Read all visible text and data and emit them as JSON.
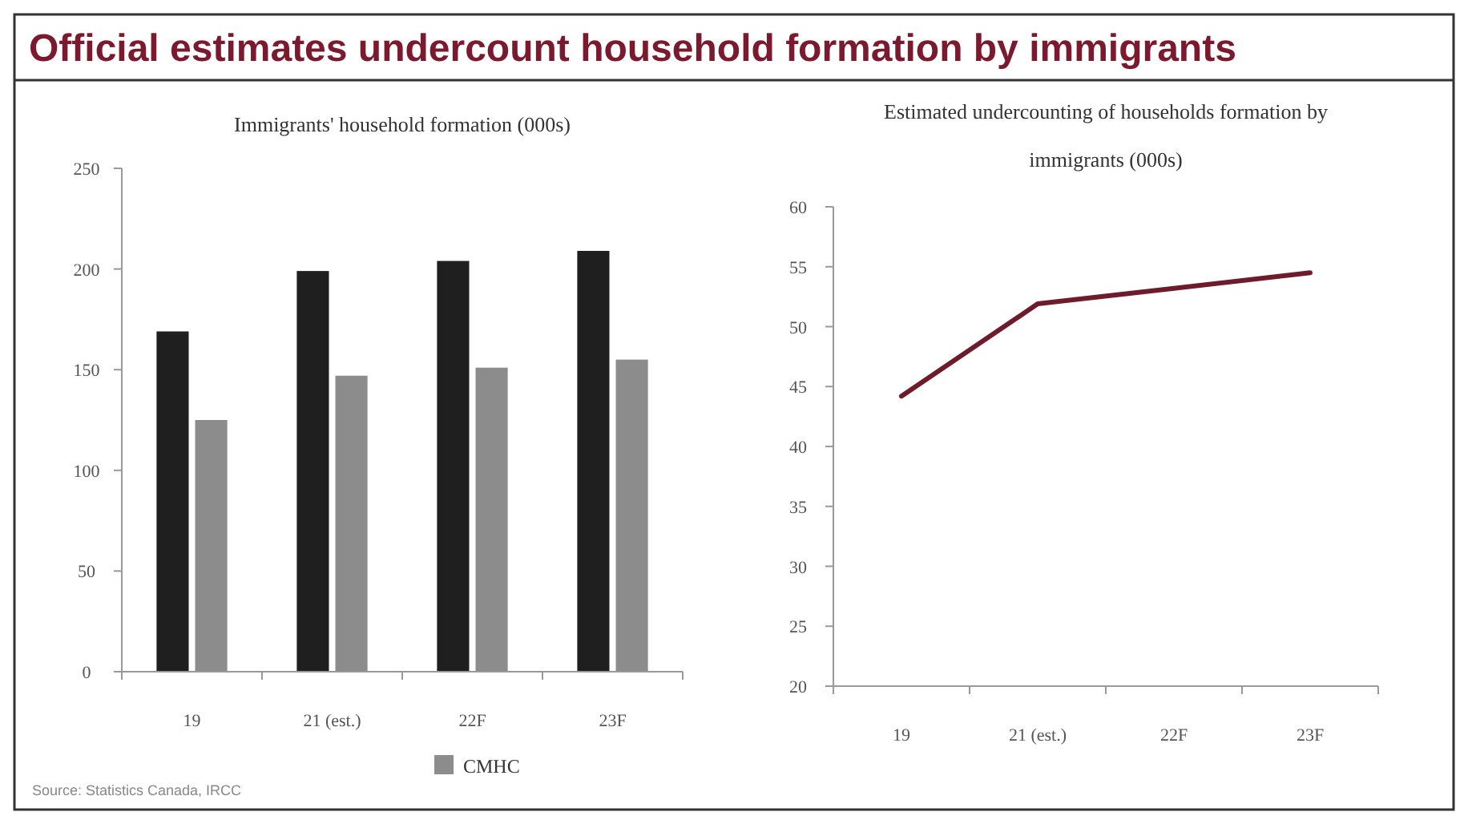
{
  "chart_data": [
    {
      "type": "bar",
      "title": "Official estimates undercount household formation by immigrants",
      "subtitle": "Immigrants' household formation (000s)",
      "categories": [
        "19",
        "21 (est.)",
        "22F",
        "23F"
      ],
      "series": [
        {
          "color": "#1f1f1f",
          "values": [
            169,
            199,
            204,
            209
          ]
        },
        {
          "name": "CMHC",
          "color": "#8c8c8c",
          "values": [
            125,
            147,
            151,
            155
          ]
        }
      ],
      "ylim": [
        0,
        250
      ],
      "yticks": [
        0,
        50,
        100,
        150,
        200,
        250
      ],
      "legend": "bottom",
      "annotations": [
        "Source: Statistics Canada, IRCC"
      ]
    },
    {
      "type": "line",
      "title": "Estimated undercounting of households formation by immigrants (000s)",
      "categories": [
        "19",
        "21 (est.)",
        "22F",
        "23F"
      ],
      "series": [
        {
          "color": "#6e1b2b",
          "values": [
            44.2,
            51.9,
            53.2,
            54.5
          ]
        }
      ],
      "ylim": [
        20,
        60
      ],
      "yticks": [
        20,
        25,
        30,
        35,
        40,
        45,
        50,
        55,
        60
      ]
    }
  ]
}
